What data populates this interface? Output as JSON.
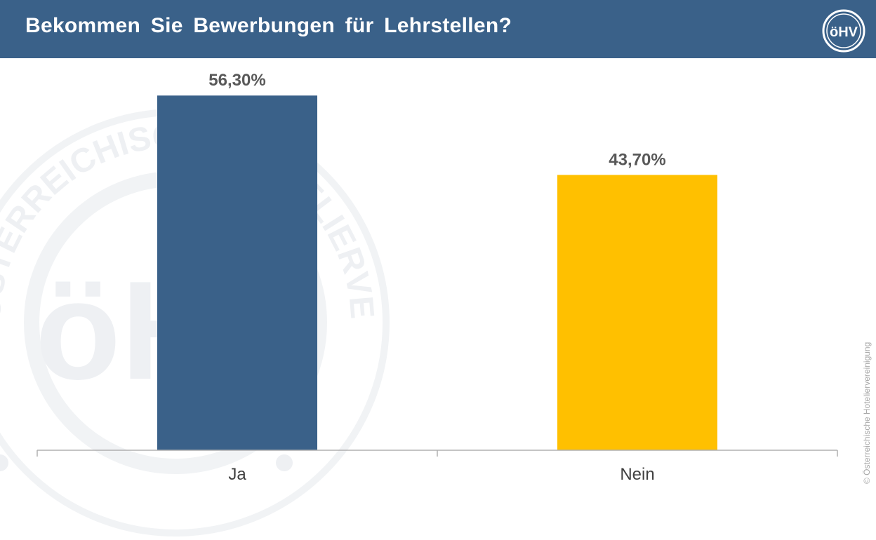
{
  "header": {
    "title": "Bekommen Sie Bewerbungen für Lehrstellen?",
    "logo_text": "öHV"
  },
  "watermark": {
    "top_text": "ÖSTERREICHISCHE HOTELIERVEREINIGUNG",
    "center_text": "öHV"
  },
  "copyright": "© Österreichische Hoteliervereinigung",
  "colors": {
    "header_bg": "#3a6189",
    "bar_ja": "#3a6189",
    "bar_nein": "#ffc000",
    "axis": "#b0b0b0"
  },
  "chart_data": {
    "type": "bar",
    "categories": [
      "Ja",
      "Nein"
    ],
    "values": [
      56.3,
      43.7
    ],
    "value_labels": [
      "56,30%",
      "43,70%"
    ],
    "title": "Bekommen Sie Bewerbungen für Lehrstellen?",
    "xlabel": "",
    "ylabel": "",
    "ylim": [
      0,
      60
    ],
    "grid": false,
    "legend": "none"
  }
}
